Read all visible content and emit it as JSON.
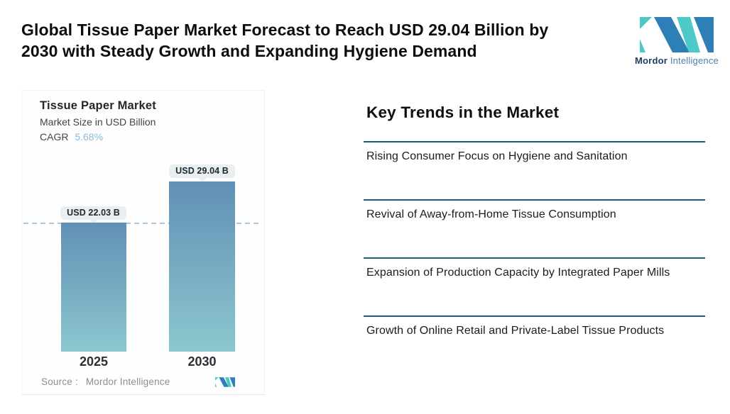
{
  "header": {
    "title": "Global Tissue Paper Market Forecast to Reach USD 29.04 Billion by 2030 with Steady Growth and Expanding Hygiene Demand",
    "title_line1": "Global Tissue Paper Market Forecast to Reach USD 29.04 Billion by",
    "title_line2": "2030 with Steady Growth and Expanding Hygiene Demand"
  },
  "brand": {
    "logo_icon": "mordor-logo-mark",
    "name_bold": "Mordor",
    "name_light": "Intelligence",
    "logo_teal": "#4dc9c8",
    "logo_blue": "#2e7eb8",
    "name_bold_color": "#1d3d63",
    "name_light_color": "#4d81ad"
  },
  "chart_card": {
    "title": "Tissue Paper Market",
    "subtitle": "Market Size in USD Billion",
    "cagr_label": "CAGR",
    "cagr_value": "5.68%",
    "source_label": "Source :",
    "source_value": "Mordor Intelligence"
  },
  "chart_data": {
    "type": "bar",
    "title": "Tissue Paper Market",
    "ylabel": "Market Size in USD Billion",
    "cagr_percent": 5.68,
    "categories": [
      "2025",
      "2030"
    ],
    "values": [
      22.03,
      29.04
    ],
    "value_labels": [
      "USD 22.03 B",
      "USD 29.04 B"
    ],
    "unit": "USD Billion",
    "ylim": [
      0,
      29.04
    ],
    "grid": "off",
    "legend": "off",
    "reference_line": {
      "value": 22.03,
      "style": "dashed",
      "color": "#a8c7e0"
    },
    "bar_color_top": "#6090b5",
    "bar_color_bottom": "#8cc7cf"
  },
  "key_trends": {
    "heading": "Key Trends in the Market",
    "divider_color": "#1a5b80",
    "items": [
      "Rising Consumer Focus on Hygiene and Sanitation",
      "Revival of Away-from-Home Tissue Consumption",
      "Expansion of Production Capacity by Integrated Paper Mills",
      "Growth of Online Retail and Private-Label Tissue Products"
    ]
  }
}
